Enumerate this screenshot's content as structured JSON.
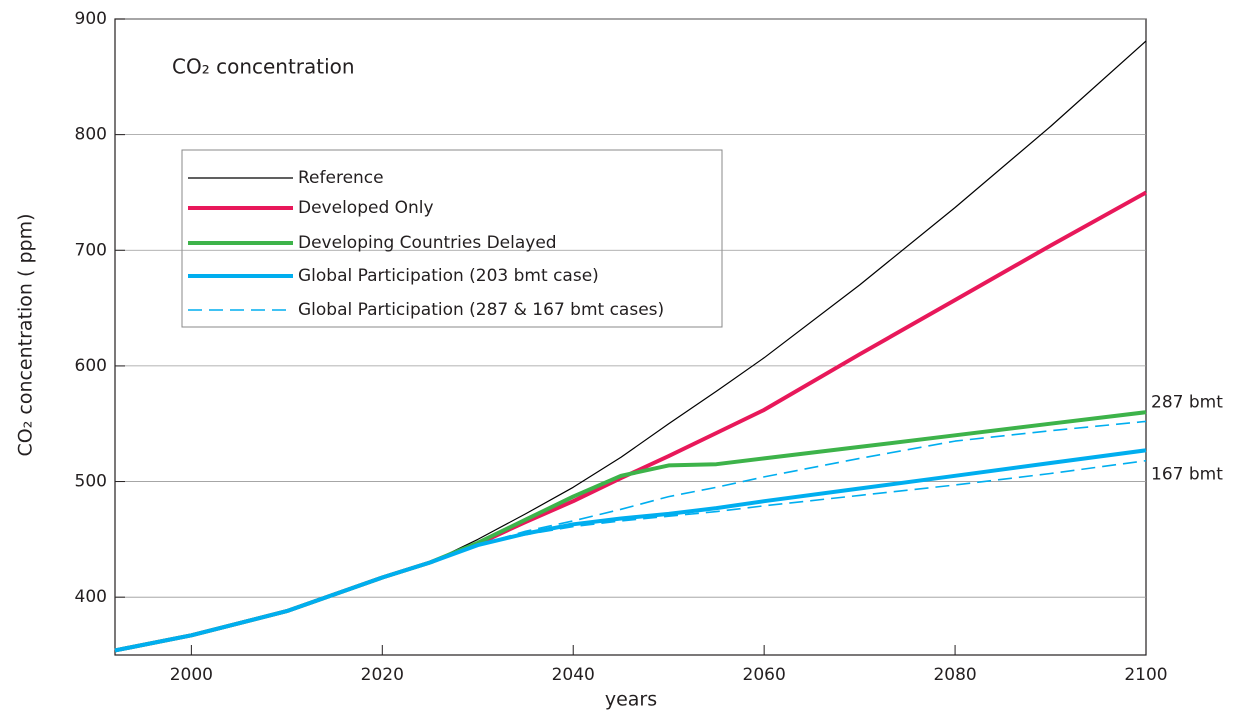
{
  "chart_data": {
    "type": "line",
    "title": "CO₂ concentration",
    "x_label": "years",
    "y_label": "CO₂ concentration ( ppm)",
    "x": [
      1992,
      2000,
      2010,
      2020,
      2025,
      2030,
      2035,
      2040,
      2045,
      2050,
      2055,
      2060,
      2070,
      2080,
      2090,
      2100
    ],
    "xlim": [
      1992,
      2100
    ],
    "xticks": [
      2000,
      2020,
      2040,
      2060,
      2080,
      2100
    ],
    "ylim": [
      350,
      900
    ],
    "yticks": [
      400,
      500,
      600,
      700,
      800,
      900
    ],
    "grid": true,
    "series": [
      {
        "name": "Reference",
        "color": "#000000",
        "width": 1.2,
        "values": [
          354,
          367,
          388,
          417,
          430,
          450,
          472,
          495,
          521,
          550,
          578,
          607,
          670,
          737,
          807,
          881
        ]
      },
      {
        "name": "Developed Only",
        "color": "#e8185a",
        "width": 4,
        "values": [
          354,
          367,
          388,
          417,
          430,
          446,
          465,
          483,
          503,
          522,
          542,
          562,
          610,
          657,
          704,
          750
        ]
      },
      {
        "name": "Developing Countries Delayed",
        "color": "#3db34a",
        "width": 4,
        "values": [
          354,
          367,
          388,
          417,
          430,
          447,
          467,
          487,
          505,
          514,
          515,
          520,
          530,
          540,
          550,
          560
        ]
      },
      {
        "name": "Global Participation (203 bmt case)",
        "color": "#00aeef",
        "width": 4,
        "values": [
          354,
          367,
          388,
          417,
          430,
          445,
          455,
          463,
          468,
          472,
          477,
          483,
          494,
          505,
          516,
          527
        ]
      },
      {
        "name": "Global Participation (287 & 167 bmt cases)",
        "color": "#00aeef",
        "width": 1.6,
        "dashed": true,
        "lines": [
          {
            "label": "287 bmt",
            "values": [
              354,
              367,
              388,
              417,
              430,
              445,
              457,
              466,
              476,
              487,
              495,
              504,
              520,
              535,
              544,
              552
            ]
          },
          {
            "label": "167 bmt",
            "values": [
              354,
              367,
              388,
              417,
              430,
              445,
              454,
              461,
              466,
              470,
              474,
              479,
              488,
              497,
              507,
              518
            ]
          }
        ]
      }
    ]
  }
}
